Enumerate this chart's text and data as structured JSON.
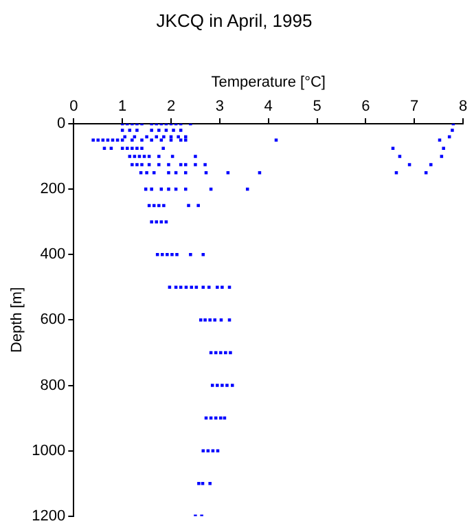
{
  "chart_data": {
    "type": "scatter",
    "title": "JKCQ in April, 1995",
    "xlabel": "Temperature [°C]",
    "ylabel": "Depth [m]",
    "xlim": [
      0,
      8
    ],
    "xticks": [
      0,
      1,
      2,
      3,
      4,
      5,
      6,
      7,
      8
    ],
    "ylim": [
      1200,
      0
    ],
    "yticks": [
      0,
      200,
      400,
      600,
      800,
      1000,
      1200
    ],
    "grid": false,
    "legend": false,
    "marker": "square",
    "series": [
      {
        "color": "#0000ff",
        "x": [
          1.0,
          1.1,
          1.2,
          1.3,
          1.4,
          1.6,
          1.7,
          1.8,
          1.9,
          2.0,
          2.1,
          2.2,
          2.4,
          7.8,
          1.0,
          1.15,
          1.3,
          1.6,
          1.75,
          1.9,
          2.05,
          2.2,
          7.78,
          1.05,
          1.25,
          1.5,
          1.7,
          1.85,
          2.0,
          2.15,
          2.3,
          7.72,
          0.4,
          0.5,
          0.6,
          0.7,
          0.8,
          0.9,
          1.0,
          1.2,
          1.4,
          1.6,
          1.8,
          2.0,
          2.2,
          2.3,
          4.16,
          7.52,
          0.63,
          0.77,
          1.0,
          1.1,
          1.2,
          1.3,
          1.4,
          1.84,
          6.56,
          7.6,
          1.15,
          1.25,
          1.35,
          1.45,
          1.55,
          1.75,
          2.03,
          2.5,
          6.7,
          7.56,
          1.2,
          1.3,
          1.4,
          1.55,
          1.75,
          1.95,
          2.2,
          2.3,
          2.5,
          2.7,
          6.9,
          7.34,
          1.38,
          1.5,
          1.65,
          1.95,
          2.1,
          2.3,
          2.72,
          3.17,
          3.82,
          6.63,
          7.24,
          1.48,
          1.6,
          1.8,
          1.95,
          2.1,
          2.3,
          2.82,
          3.57,
          1.55,
          1.65,
          1.75,
          1.85,
          2.36,
          2.56,
          1.6,
          1.7,
          1.8,
          1.9,
          1.72,
          1.82,
          1.92,
          2.02,
          2.12,
          2.4,
          2.66,
          1.97,
          2.1,
          2.2,
          2.31,
          2.42,
          2.52,
          2.66,
          2.78,
          2.95,
          3.05,
          3.2,
          2.61,
          2.7,
          2.8,
          2.9,
          3.03,
          3.2,
          2.82,
          2.92,
          3.02,
          3.12,
          3.22,
          2.85,
          2.95,
          3.05,
          3.15,
          3.26,
          2.72,
          2.82,
          2.92,
          3.02,
          3.1,
          2.66,
          2.76,
          2.86,
          2.96,
          2.57,
          2.65,
          2.8,
          2.5,
          2.63
        ],
        "values": [
          0,
          0,
          0,
          0,
          0,
          0,
          0,
          0,
          0,
          0,
          0,
          0,
          0,
          0,
          20,
          20,
          20,
          20,
          20,
          20,
          20,
          20,
          20,
          40,
          40,
          40,
          40,
          40,
          40,
          40,
          40,
          40,
          50,
          50,
          50,
          50,
          50,
          50,
          50,
          50,
          50,
          50,
          50,
          50,
          50,
          50,
          50,
          50,
          75,
          75,
          75,
          75,
          75,
          75,
          75,
          75,
          75,
          75,
          100,
          100,
          100,
          100,
          100,
          100,
          100,
          100,
          100,
          100,
          125,
          125,
          125,
          125,
          125,
          125,
          125,
          125,
          125,
          125,
          125,
          125,
          150,
          150,
          150,
          150,
          150,
          150,
          150,
          150,
          150,
          150,
          150,
          200,
          200,
          200,
          200,
          200,
          200,
          200,
          200,
          250,
          250,
          250,
          250,
          250,
          250,
          300,
          300,
          300,
          300,
          400,
          400,
          400,
          400,
          400,
          400,
          400,
          500,
          500,
          500,
          500,
          500,
          500,
          500,
          500,
          500,
          500,
          500,
          600,
          600,
          600,
          600,
          600,
          600,
          700,
          700,
          700,
          700,
          700,
          800,
          800,
          800,
          800,
          800,
          900,
          900,
          900,
          900,
          900,
          1000,
          1000,
          1000,
          1000,
          1100,
          1100,
          1100,
          1200,
          1200
        ]
      }
    ]
  }
}
